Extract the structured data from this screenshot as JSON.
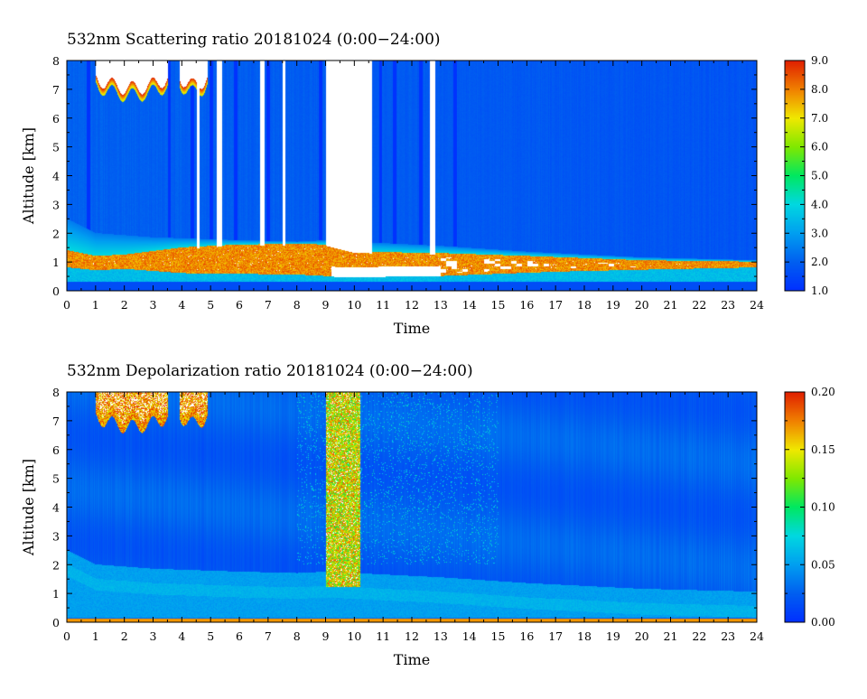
{
  "panels": [
    {
      "title": "532nm Scattering ratio  20181024 (0:00−24:00)",
      "xlabel": "Time",
      "ylabel": "Altitude [km]",
      "colorbar": {
        "ticks": [
          "1.0",
          "2.0",
          "3.0",
          "4.0",
          "5.0",
          "6.0",
          "7.0",
          "8.0",
          "9.0"
        ],
        "range": [
          1.0,
          9.0
        ],
        "colormap": [
          "#0030ff",
          "#0060f0",
          "#00a0f0",
          "#00d8e0",
          "#00e860",
          "#80e800",
          "#f0e800",
          "#f08000",
          "#e02000"
        ]
      }
    },
    {
      "title": "532nm Depolarization ratio  20181024 (0:00−24:00)",
      "xlabel": "Time",
      "ylabel": "Altitude [km]",
      "colorbar": {
        "ticks": [
          "0.00",
          "0.05",
          "0.10",
          "0.15",
          "0.20"
        ],
        "range": [
          0.0,
          0.2
        ],
        "colormap": [
          "#0030ff",
          "#0060f0",
          "#00a0f0",
          "#00d8e0",
          "#00e860",
          "#80e800",
          "#f0e800",
          "#f08000",
          "#e02000"
        ]
      }
    }
  ],
  "chart_data": [
    {
      "type": "heatmap",
      "title": "532nm Scattering ratio  20181024 (0:00−24:00)",
      "xlabel": "Time",
      "ylabel": "Altitude [km]",
      "xlim": [
        0,
        24
      ],
      "ylim": [
        0,
        8
      ],
      "xticks": [
        "0",
        "1",
        "2",
        "3",
        "4",
        "5",
        "6",
        "7",
        "8",
        "9",
        "10",
        "11",
        "12",
        "13",
        "14",
        "15",
        "16",
        "17",
        "18",
        "19",
        "20",
        "21",
        "22",
        "23",
        "24"
      ],
      "yticks": [
        "0",
        "1",
        "2",
        "3",
        "4",
        "5",
        "6",
        "7",
        "8"
      ],
      "colorbar_range": [
        1.0,
        9.0
      ],
      "features": {
        "background_value": 1.8,
        "boundary_layer_top_km": [
          [
            0,
            2.5
          ],
          [
            1,
            2.0
          ],
          [
            3,
            1.85
          ],
          [
            6,
            1.75
          ],
          [
            8,
            1.7
          ],
          [
            9,
            1.75
          ],
          [
            10,
            1.7
          ],
          [
            13,
            1.55
          ],
          [
            16,
            1.35
          ],
          [
            20,
            1.15
          ],
          [
            24,
            1.05
          ]
        ],
        "high_layer_top_km": [
          [
            0,
            1.4
          ],
          [
            1,
            1.2
          ],
          [
            2,
            1.25
          ],
          [
            4,
            1.5
          ],
          [
            6,
            1.6
          ],
          [
            8,
            1.62
          ],
          [
            9,
            1.6
          ],
          [
            10,
            1.35
          ],
          [
            13,
            1.3
          ],
          [
            16,
            1.2
          ],
          [
            20,
            1.05
          ],
          [
            24,
            1.0
          ]
        ],
        "high_layer_bottom_km": [
          [
            0,
            0.8
          ],
          [
            1,
            0.7
          ],
          [
            2,
            0.75
          ],
          [
            4,
            0.6
          ],
          [
            8,
            0.55
          ],
          [
            9,
            0.5
          ],
          [
            9.5,
            0.45
          ],
          [
            13,
            0.5
          ],
          [
            17,
            0.65
          ],
          [
            20,
            0.72
          ],
          [
            24,
            0.8
          ]
        ],
        "high_layer_value": 8.5,
        "saturated_cloud_columns_hours": [
          [
            4.5,
            4.6
          ],
          [
            5.2,
            5.4
          ],
          [
            6.7,
            6.85
          ],
          [
            7.5,
            7.6
          ],
          [
            9.0,
            10.6
          ],
          [
            12.6,
            12.8
          ]
        ],
        "thin_cloud_streaks_hours": [
          0.75,
          3.55,
          4.35,
          5.0,
          5.85,
          7.0,
          8.8,
          10.9,
          11.4,
          12.3,
          13.5
        ],
        "upper_cloud_patches": [
          {
            "t0": 1.0,
            "t1": 3.5,
            "base_km": 6.8
          },
          {
            "t0": 3.9,
            "t1": 4.9,
            "base_km": 6.9
          }
        ],
        "surface_layer_km": 0.3
      }
    },
    {
      "type": "heatmap",
      "title": "532nm Depolarization ratio  20181024 (0:00−24:00)",
      "xlabel": "Time",
      "ylabel": "Altitude [km]",
      "xlim": [
        0,
        24
      ],
      "ylim": [
        0,
        8
      ],
      "xticks": [
        "0",
        "1",
        "2",
        "3",
        "4",
        "5",
        "6",
        "7",
        "8",
        "9",
        "10",
        "11",
        "12",
        "13",
        "14",
        "15",
        "16",
        "17",
        "18",
        "19",
        "20",
        "21",
        "22",
        "23",
        "24"
      ],
      "yticks": [
        "0",
        "1",
        "2",
        "3",
        "4",
        "5",
        "6",
        "7",
        "8"
      ],
      "colorbar_range": [
        0.0,
        0.2
      ],
      "features": {
        "background_value": 0.02,
        "boundary_layer_top_km": [
          [
            0,
            2.5
          ],
          [
            1,
            2.0
          ],
          [
            3,
            1.85
          ],
          [
            6,
            1.75
          ],
          [
            8,
            1.7
          ],
          [
            9,
            1.75
          ],
          [
            10,
            1.7
          ],
          [
            13,
            1.55
          ],
          [
            16,
            1.35
          ],
          [
            20,
            1.15
          ],
          [
            24,
            1.05
          ]
        ],
        "boundary_layer_value": 0.045,
        "ice_cloud_columns_hours": [
          [
            9.0,
            10.2
          ]
        ],
        "ice_cloud_value": 0.18,
        "speckle_noise_region": {
          "t0": 8.0,
          "t1": 15.0,
          "alt_min_km": 2.0
        },
        "upper_cloud_patches": [
          {
            "t0": 1.0,
            "t1": 3.5,
            "base_km": 6.8
          },
          {
            "t0": 3.9,
            "t1": 4.9,
            "base_km": 6.9
          }
        ],
        "surface_value": 0.17
      }
    }
  ]
}
